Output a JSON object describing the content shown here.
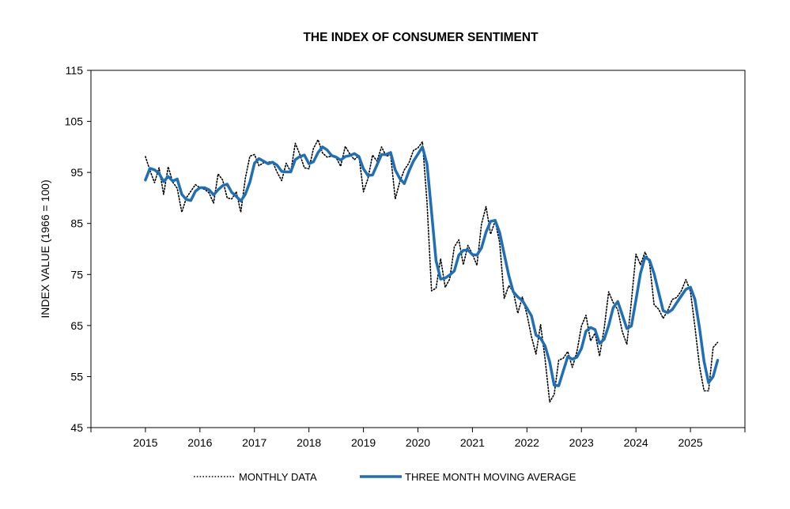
{
  "chart_data": {
    "type": "line",
    "title": "THE INDEX OF CONSUMER SENTIMENT",
    "xlabel": "",
    "ylabel": "INDEX VALUE (1966 = 100)",
    "ylim": [
      45,
      115
    ],
    "xlim": [
      2014.0,
      2026.0
    ],
    "yticks": [
      45,
      55,
      65,
      75,
      85,
      95,
      105,
      115
    ],
    "xticks": [
      2015,
      2016,
      2017,
      2018,
      2019,
      2020,
      2021,
      2022,
      2023,
      2024,
      2025
    ],
    "grid": false,
    "legend_position": "bottom",
    "series": [
      {
        "name": "MONTHLY DATA",
        "style": "dotted",
        "color": "#000000",
        "x": [
          2015.0,
          2015.083,
          2015.167,
          2015.25,
          2015.333,
          2015.417,
          2015.5,
          2015.583,
          2015.667,
          2015.75,
          2015.833,
          2015.917,
          2016.0,
          2016.083,
          2016.167,
          2016.25,
          2016.333,
          2016.417,
          2016.5,
          2016.583,
          2016.667,
          2016.75,
          2016.833,
          2016.917,
          2017.0,
          2017.083,
          2017.167,
          2017.25,
          2017.333,
          2017.417,
          2017.5,
          2017.583,
          2017.667,
          2017.75,
          2017.833,
          2017.917,
          2018.0,
          2018.083,
          2018.167,
          2018.25,
          2018.333,
          2018.417,
          2018.5,
          2018.583,
          2018.667,
          2018.75,
          2018.833,
          2018.917,
          2019.0,
          2019.083,
          2019.167,
          2019.25,
          2019.333,
          2019.417,
          2019.5,
          2019.583,
          2019.667,
          2019.75,
          2019.833,
          2019.917,
          2020.0,
          2020.083,
          2020.167,
          2020.25,
          2020.333,
          2020.417,
          2020.5,
          2020.583,
          2020.667,
          2020.75,
          2020.833,
          2020.917,
          2021.0,
          2021.083,
          2021.167,
          2021.25,
          2021.333,
          2021.417,
          2021.5,
          2021.583,
          2021.667,
          2021.75,
          2021.833,
          2021.917,
          2022.0,
          2022.083,
          2022.167,
          2022.25,
          2022.333,
          2022.417,
          2022.5,
          2022.583,
          2022.667,
          2022.75,
          2022.833,
          2022.917,
          2023.0,
          2023.083,
          2023.167,
          2023.25,
          2023.333,
          2023.417,
          2023.5,
          2023.583,
          2023.667,
          2023.75,
          2023.833,
          2023.917,
          2024.0,
          2024.083,
          2024.167,
          2024.25,
          2024.333,
          2024.417,
          2024.5,
          2024.583,
          2024.667,
          2024.75,
          2024.833,
          2024.917,
          2025.0,
          2025.083,
          2025.167,
          2025.25,
          2025.333,
          2025.417,
          2025.5
        ],
        "values": [
          98.1,
          95.4,
          93.0,
          95.9,
          90.7,
          96.1,
          93.1,
          91.9,
          87.2,
          90.0,
          91.3,
          92.6,
          92.0,
          91.7,
          91.0,
          89.0,
          94.7,
          93.5,
          90.0,
          89.8,
          91.2,
          87.2,
          93.8,
          98.2,
          98.5,
          96.3,
          96.9,
          97.0,
          97.1,
          95.0,
          93.4,
          96.8,
          95.1,
          100.7,
          98.5,
          95.9,
          95.7,
          99.7,
          101.4,
          98.8,
          98.0,
          98.2,
          97.9,
          96.2,
          100.1,
          98.6,
          97.5,
          98.3,
          91.2,
          93.8,
          98.4,
          97.2,
          100.0,
          98.2,
          98.4,
          89.8,
          93.2,
          95.5,
          96.8,
          99.3,
          99.8,
          101.0,
          89.1,
          71.8,
          72.3,
          78.1,
          72.5,
          74.1,
          80.4,
          81.8,
          76.9,
          80.7,
          79.0,
          76.8,
          84.9,
          88.3,
          82.9,
          85.5,
          81.2,
          70.3,
          72.8,
          71.7,
          67.4,
          70.6,
          67.2,
          62.8,
          59.4,
          65.2,
          58.4,
          50.0,
          51.5,
          58.2,
          58.6,
          59.9,
          56.8,
          59.8,
          64.9,
          67.0,
          62.0,
          63.5,
          59.0,
          64.4,
          71.6,
          69.5,
          68.1,
          63.8,
          61.3,
          69.7,
          79.0,
          76.9,
          79.4,
          77.2,
          69.1,
          68.2,
          66.4,
          67.9,
          70.1,
          70.5,
          71.8,
          74.0,
          71.7,
          64.7,
          57.0,
          52.2,
          52.2,
          60.7,
          61.7
        ]
      },
      {
        "name": "THREE MONTH MOVING AVERAGE",
        "style": "solid",
        "color": "#1f6fb7",
        "x": [
          2015.0,
          2015.083,
          2015.167,
          2015.25,
          2015.333,
          2015.417,
          2015.5,
          2015.583,
          2015.667,
          2015.75,
          2015.833,
          2015.917,
          2016.0,
          2016.083,
          2016.167,
          2016.25,
          2016.333,
          2016.417,
          2016.5,
          2016.583,
          2016.667,
          2016.75,
          2016.833,
          2016.917,
          2017.0,
          2017.083,
          2017.167,
          2017.25,
          2017.333,
          2017.417,
          2017.5,
          2017.583,
          2017.667,
          2017.75,
          2017.833,
          2017.917,
          2018.0,
          2018.083,
          2018.167,
          2018.25,
          2018.333,
          2018.417,
          2018.5,
          2018.583,
          2018.667,
          2018.75,
          2018.833,
          2018.917,
          2019.0,
          2019.083,
          2019.167,
          2019.25,
          2019.333,
          2019.417,
          2019.5,
          2019.583,
          2019.667,
          2019.75,
          2019.833,
          2019.917,
          2020.0,
          2020.083,
          2020.167,
          2020.25,
          2020.333,
          2020.417,
          2020.5,
          2020.583,
          2020.667,
          2020.75,
          2020.833,
          2020.917,
          2021.0,
          2021.083,
          2021.167,
          2021.25,
          2021.333,
          2021.417,
          2021.5,
          2021.583,
          2021.667,
          2021.75,
          2021.833,
          2021.917,
          2022.0,
          2022.083,
          2022.167,
          2022.25,
          2022.333,
          2022.417,
          2022.5,
          2022.583,
          2022.667,
          2022.75,
          2022.833,
          2022.917,
          2023.0,
          2023.083,
          2023.167,
          2023.25,
          2023.333,
          2023.417,
          2023.5,
          2023.583,
          2023.667,
          2023.75,
          2023.833,
          2023.917,
          2024.0,
          2024.083,
          2024.167,
          2024.25,
          2024.333,
          2024.417,
          2024.5,
          2024.583,
          2024.667,
          2024.75,
          2024.833,
          2024.917,
          2025.0,
          2025.083,
          2025.167,
          2025.25,
          2025.333,
          2025.417,
          2025.5
        ],
        "values": [
          93.5,
          95.8,
          95.5,
          94.8,
          93.2,
          94.2,
          93.3,
          93.7,
          90.7,
          89.7,
          89.5,
          91.3,
          92.0,
          92.0,
          91.6,
          90.6,
          91.6,
          92.4,
          92.7,
          91.1,
          90.3,
          89.4,
          90.7,
          93.1,
          96.8,
          97.7,
          97.2,
          96.7,
          97.0,
          96.4,
          95.2,
          95.1,
          95.1,
          97.5,
          98.1,
          98.4,
          96.7,
          97.1,
          98.9,
          100.0,
          99.4,
          98.3,
          98.0,
          97.4,
          98.1,
          98.3,
          98.7,
          98.1,
          95.7,
          94.4,
          94.5,
          96.5,
          98.5,
          98.5,
          98.9,
          95.5,
          93.8,
          92.8,
          95.2,
          97.2,
          98.6,
          100.0,
          96.6,
          87.3,
          77.7,
          74.1,
          74.3,
          74.9,
          75.7,
          78.8,
          79.7,
          79.8,
          78.9,
          78.8,
          80.2,
          83.3,
          85.4,
          85.6,
          83.2,
          79.0,
          74.8,
          71.6,
          70.6,
          69.9,
          68.4,
          66.9,
          63.1,
          62.5,
          61.0,
          57.9,
          53.3,
          53.2,
          56.1,
          58.9,
          58.4,
          58.8,
          60.5,
          63.9,
          64.6,
          64.2,
          61.5,
          62.3,
          65.0,
          68.5,
          69.7,
          67.1,
          64.4,
          64.9,
          70.0,
          75.2,
          78.4,
          77.8,
          75.2,
          71.5,
          67.9,
          67.5,
          68.1,
          69.5,
          70.8,
          72.1,
          72.5,
          70.1,
          64.5,
          58.0,
          53.8,
          55.0,
          58.2
        ]
      }
    ]
  }
}
